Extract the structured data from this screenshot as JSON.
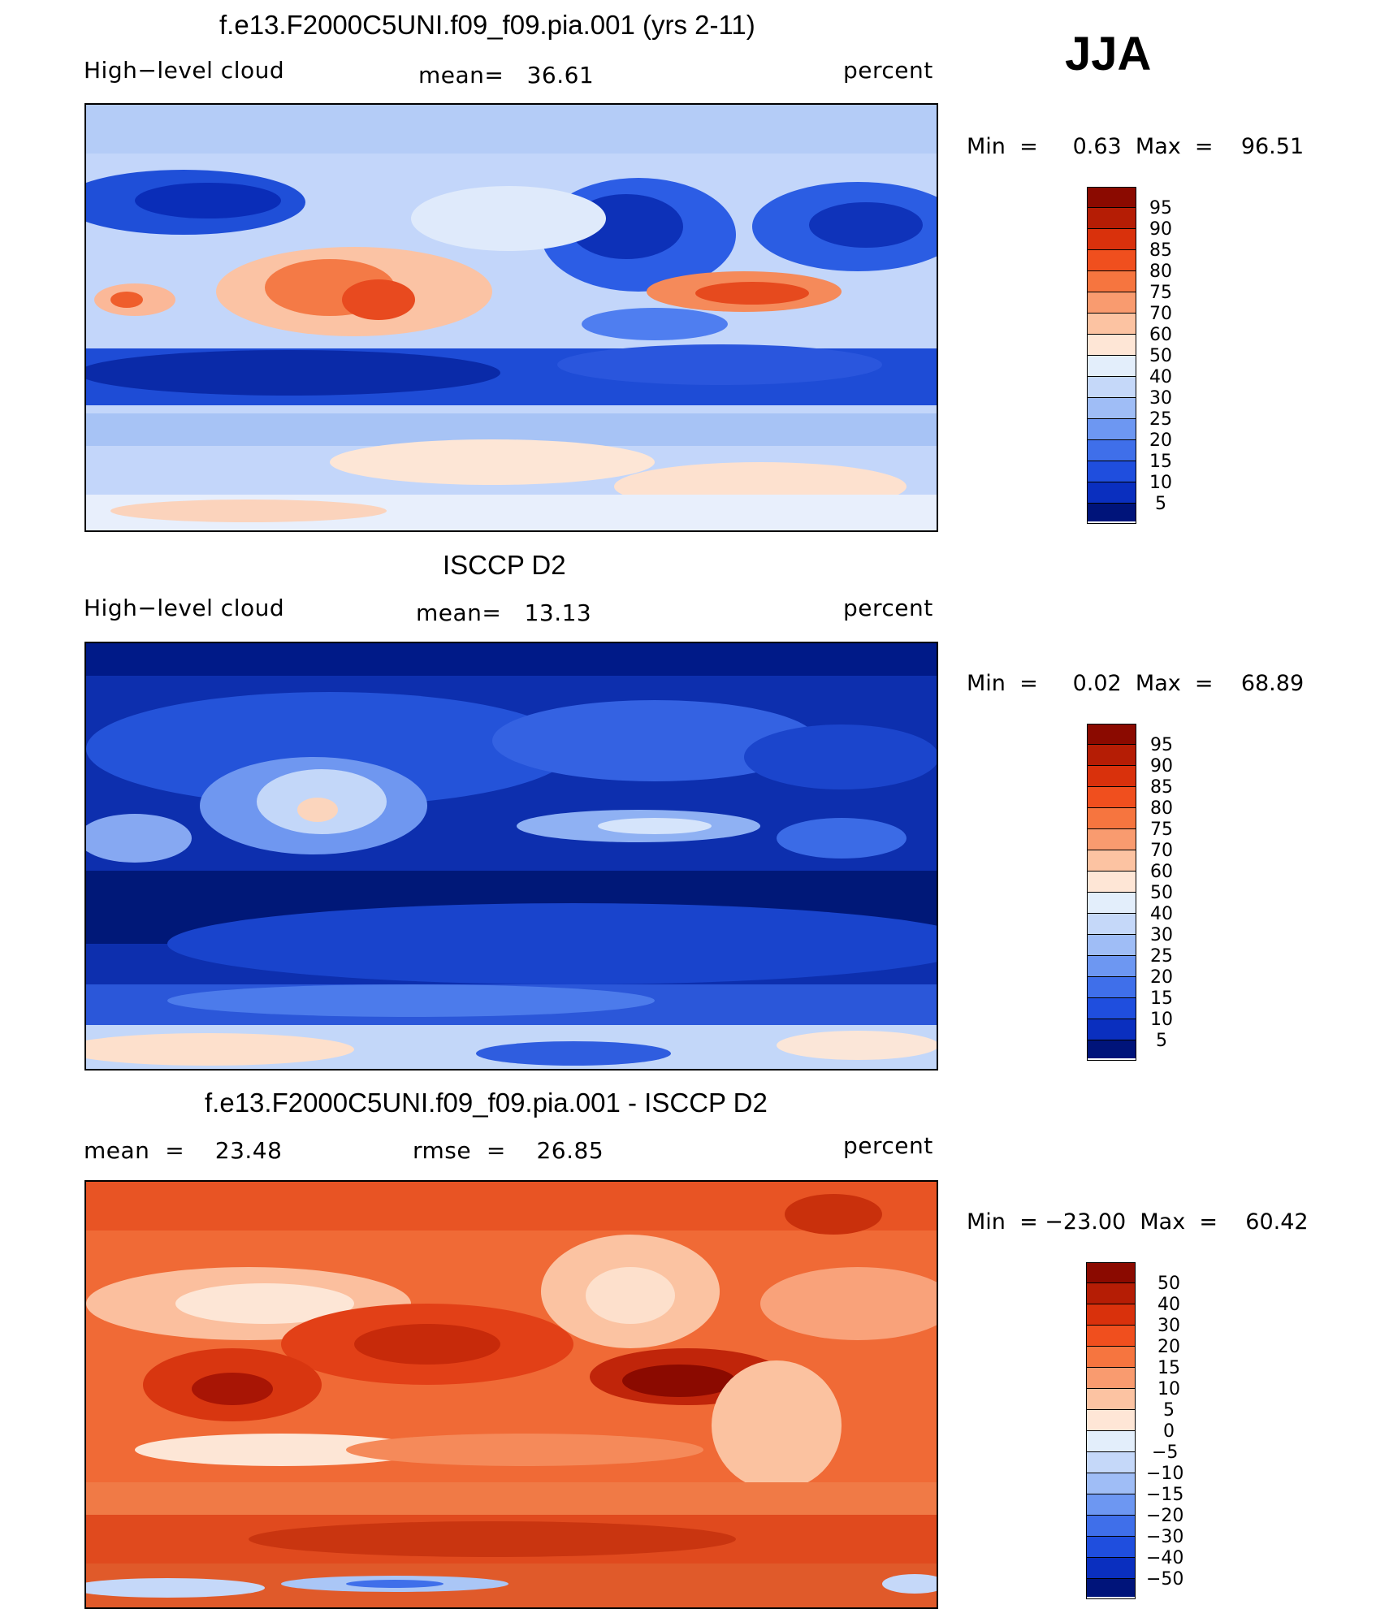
{
  "season_label": "JJA",
  "panels": [
    {
      "title": "f.e13.F2000C5UNI.f09_f09.pia.001 (yrs 2-11)",
      "left_label": "High−level cloud",
      "center_label": "mean=   36.61",
      "right_label": "percent",
      "minmax": "Min  =     0.63  Max  =    96.51",
      "colorbar_labels": [
        "95",
        "90",
        "85",
        "80",
        "75",
        "70",
        "60",
        "50",
        "40",
        "30",
        "25",
        "20",
        "15",
        "10",
        "5"
      ]
    },
    {
      "title": "ISCCP D2",
      "left_label": "High−level cloud",
      "center_label": "mean=   13.13",
      "right_label": "percent",
      "minmax": "Min  =     0.02  Max  =    68.89",
      "colorbar_labels": [
        "95",
        "90",
        "85",
        "80",
        "75",
        "70",
        "60",
        "50",
        "40",
        "30",
        "25",
        "20",
        "15",
        "10",
        "5"
      ]
    },
    {
      "title": "f.e13.F2000C5UNI.f09_f09.pia.001 - ISCCP D2",
      "left_label": "mean  =    23.48",
      "center_label": "rmse  =    26.85",
      "right_label": "percent",
      "minmax": "Min  = −23.00  Max  =    60.42",
      "colorbar_labels": [
        "50",
        "40",
        "30",
        "20",
        "15",
        "10",
        "5",
        "0",
        "−5",
        "−10",
        "−15",
        "−20",
        "−30",
        "−40",
        "−50"
      ]
    }
  ],
  "chart_data": [
    {
      "type": "heatmap",
      "title": "f.e13.F2000C5UNI.f09_f09.pia.001 (yrs 2-11)",
      "variable": "High−level cloud",
      "units": "percent",
      "season": "JJA",
      "mean": 36.61,
      "min": 0.63,
      "max": 96.51,
      "contour_levels": [
        5,
        10,
        15,
        20,
        25,
        30,
        40,
        50,
        60,
        70,
        75,
        80,
        85,
        90,
        95
      ]
    },
    {
      "type": "heatmap",
      "title": "ISCCP D2",
      "variable": "High−level cloud",
      "units": "percent",
      "season": "JJA",
      "mean": 13.13,
      "min": 0.02,
      "max": 68.89,
      "contour_levels": [
        5,
        10,
        15,
        20,
        25,
        30,
        40,
        50,
        60,
        70,
        75,
        80,
        85,
        90,
        95
      ]
    },
    {
      "type": "heatmap",
      "title": "f.e13.F2000C5UNI.f09_f09.pia.001 - ISCCP D2",
      "units": "percent",
      "season": "JJA",
      "mean": 23.48,
      "rmse": 26.85,
      "min": -23.0,
      "max": 60.42,
      "contour_levels": [
        -50,
        -40,
        -30,
        -20,
        -15,
        -10,
        -5,
        0,
        5,
        10,
        15,
        20,
        30,
        40,
        50
      ]
    }
  ],
  "colors": {
    "scale": [
      "#00007a",
      "#001aa0",
      "#0033c4",
      "#1f52e0",
      "#3c6ff0",
      "#6a95f5",
      "#9dbcf7",
      "#c7dafa",
      "#e6f0fb",
      "#fde8da",
      "#fbc6a8",
      "#f8a077",
      "#f67845",
      "#ec4d1e",
      "#c72a0a",
      "#8b0a00"
    ]
  }
}
